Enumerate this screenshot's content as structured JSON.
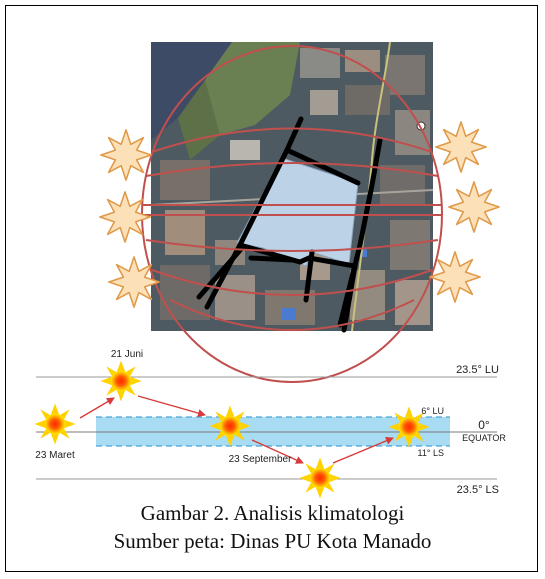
{
  "diagram": {
    "lines": {
      "north_label": "23.5° LU",
      "south_label": "23.5° LS",
      "equator_deg": "0°",
      "equator_label": "EQUATOR",
      "site_north": "6° LU",
      "site_south": "11° LS"
    },
    "sun_dates": {
      "june": "21 Juni",
      "march": "23 Maret",
      "september": "23 September"
    }
  },
  "caption": {
    "line1": "Gambar 2. Analisis klimatologi",
    "line2": "Sumber peta: Dinas PU Kota Manado"
  }
}
